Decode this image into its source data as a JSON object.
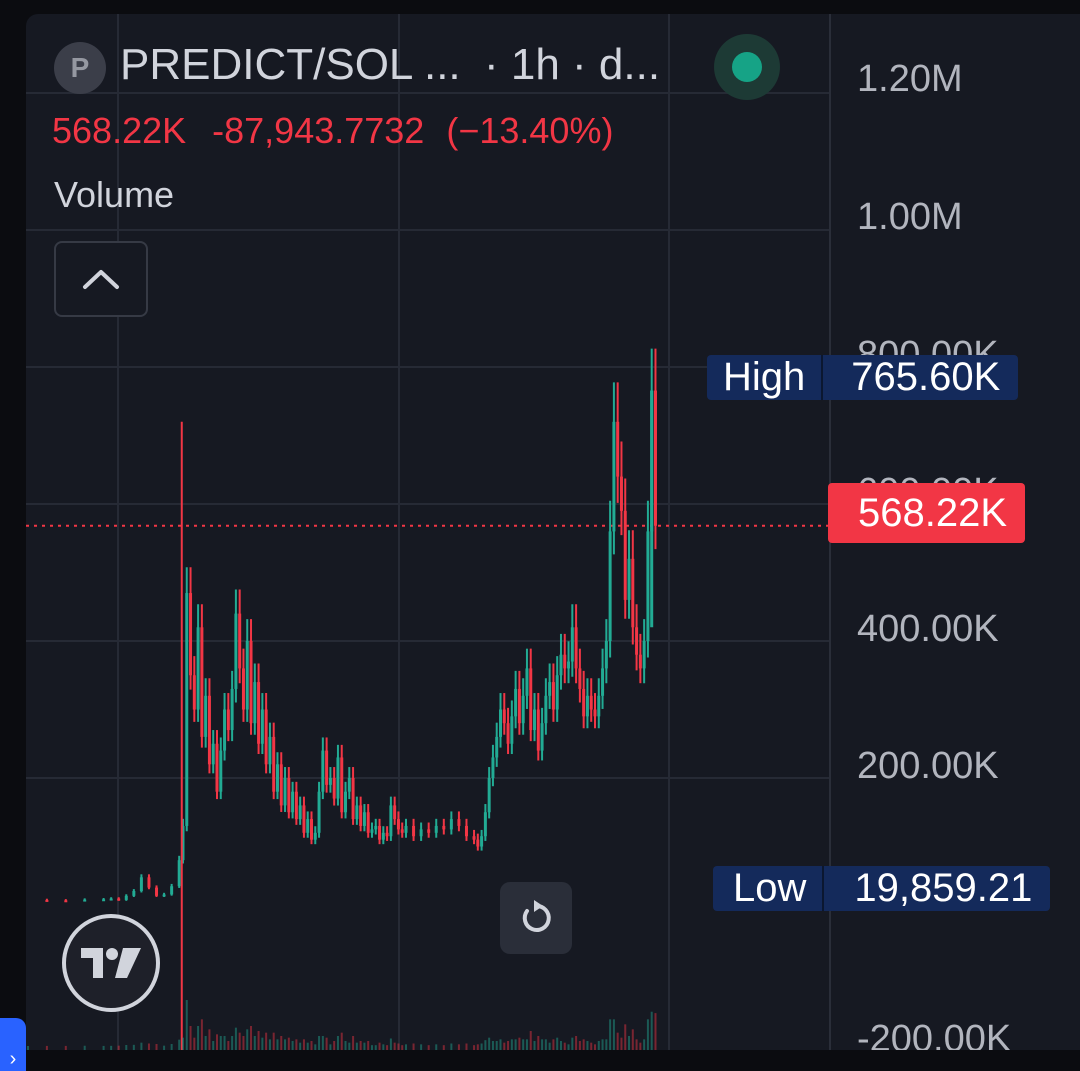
{
  "header": {
    "symbol_badge": "P",
    "symbol": "PREDICT/SOL ...",
    "interval": "· 1h · d...",
    "status_color": "#16a386"
  },
  "legend": {
    "price": "568.22K",
    "change_abs": "-87,943.7732",
    "change_pct": "(−13.40%)",
    "indicator": "Volume"
  },
  "price_scale": {
    "labels": [
      "1.20M",
      "1.00M",
      "800.00K",
      "600.00K",
      "400.00K",
      "200.00K",
      "-200.00K"
    ],
    "high_label": "High",
    "high_value": "765.60K",
    "last_value": "568.22K",
    "low_label": "Low",
    "low_value": "19,859.21"
  },
  "colors": {
    "up": "#22ab94",
    "down": "#f23645",
    "background": "#161922",
    "grid": "#262a35",
    "label_box": "#142a5b"
  },
  "controls": {
    "collapse_icon": "chevron-up-icon",
    "reset_icon": "reset-rotate-icon",
    "logo": "tradingview-logo"
  },
  "chart_data": {
    "type": "candlestick",
    "y_range": [
      -200000,
      1280000
    ],
    "last_price": 568220,
    "high": 765600,
    "low": 19859.21,
    "series_close": [
      [
        0,
        22000
      ],
      [
        5,
        21500
      ],
      [
        10,
        21000
      ],
      [
        15,
        22500
      ],
      [
        20,
        23000
      ],
      [
        22,
        24000
      ],
      [
        24,
        22000
      ],
      [
        26,
        28000
      ],
      [
        28,
        35000
      ],
      [
        30,
        55000
      ],
      [
        32,
        40000
      ],
      [
        34,
        28000
      ],
      [
        36,
        30000
      ],
      [
        38,
        42000
      ],
      [
        40,
        80000
      ],
      [
        41,
        130000
      ],
      [
        42,
        470000
      ],
      [
        43,
        350000
      ],
      [
        44,
        300000
      ],
      [
        45,
        420000
      ],
      [
        46,
        260000
      ],
      [
        47,
        320000
      ],
      [
        48,
        220000
      ],
      [
        49,
        250000
      ],
      [
        50,
        180000
      ],
      [
        51,
        240000
      ],
      [
        52,
        300000
      ],
      [
        53,
        270000
      ],
      [
        54,
        330000
      ],
      [
        55,
        440000
      ],
      [
        56,
        360000
      ],
      [
        57,
        300000
      ],
      [
        58,
        400000
      ],
      [
        59,
        280000
      ],
      [
        60,
        340000
      ],
      [
        61,
        250000
      ],
      [
        62,
        300000
      ],
      [
        63,
        220000
      ],
      [
        64,
        260000
      ],
      [
        65,
        180000
      ],
      [
        66,
        220000
      ],
      [
        67,
        160000
      ],
      [
        68,
        200000
      ],
      [
        69,
        150000
      ],
      [
        70,
        180000
      ],
      [
        71,
        140000
      ],
      [
        72,
        160000
      ],
      [
        73,
        120000
      ],
      [
        74,
        140000
      ],
      [
        75,
        110000
      ],
      [
        76,
        120000
      ],
      [
        77,
        180000
      ],
      [
        78,
        240000
      ],
      [
        79,
        190000
      ],
      [
        80,
        200000
      ],
      [
        81,
        170000
      ],
      [
        82,
        230000
      ],
      [
        83,
        150000
      ],
      [
        84,
        180000
      ],
      [
        85,
        200000
      ],
      [
        86,
        140000
      ],
      [
        87,
        160000
      ],
      [
        88,
        130000
      ],
      [
        89,
        150000
      ],
      [
        90,
        120000
      ],
      [
        91,
        125000
      ],
      [
        92,
        130000
      ],
      [
        93,
        110000
      ],
      [
        94,
        120000
      ],
      [
        95,
        115000
      ],
      [
        96,
        160000
      ],
      [
        97,
        140000
      ],
      [
        98,
        125000
      ],
      [
        99,
        120000
      ],
      [
        100,
        130000
      ],
      [
        102,
        115000
      ],
      [
        104,
        125000
      ],
      [
        106,
        120000
      ],
      [
        108,
        130000
      ],
      [
        110,
        125000
      ],
      [
        112,
        140000
      ],
      [
        114,
        130000
      ],
      [
        116,
        115000
      ],
      [
        118,
        110000
      ],
      [
        119,
        100000
      ],
      [
        120,
        115000
      ],
      [
        121,
        150000
      ],
      [
        122,
        200000
      ],
      [
        123,
        230000
      ],
      [
        124,
        260000
      ],
      [
        125,
        300000
      ],
      [
        126,
        280000
      ],
      [
        127,
        250000
      ],
      [
        128,
        290000
      ],
      [
        129,
        330000
      ],
      [
        130,
        280000
      ],
      [
        131,
        320000
      ],
      [
        132,
        360000
      ],
      [
        133,
        270000
      ],
      [
        134,
        300000
      ],
      [
        135,
        240000
      ],
      [
        136,
        280000
      ],
      [
        137,
        320000
      ],
      [
        138,
        340000
      ],
      [
        139,
        300000
      ],
      [
        140,
        350000
      ],
      [
        141,
        380000
      ],
      [
        142,
        360000
      ],
      [
        143,
        370000
      ],
      [
        144,
        420000
      ],
      [
        145,
        360000
      ],
      [
        146,
        330000
      ],
      [
        147,
        290000
      ],
      [
        148,
        320000
      ],
      [
        149,
        300000
      ],
      [
        150,
        290000
      ],
      [
        151,
        320000
      ],
      [
        152,
        360000
      ],
      [
        153,
        400000
      ],
      [
        154,
        560000
      ],
      [
        155,
        720000
      ],
      [
        156,
        640000
      ],
      [
        157,
        590000
      ],
      [
        158,
        460000
      ],
      [
        159,
        520000
      ],
      [
        160,
        420000
      ],
      [
        161,
        380000
      ],
      [
        162,
        360000
      ],
      [
        163,
        400000
      ],
      [
        164,
        560000
      ],
      [
        165,
        765600
      ],
      [
        166,
        568220
      ]
    ],
    "volume_note": "volume histogram bars along bottom"
  }
}
